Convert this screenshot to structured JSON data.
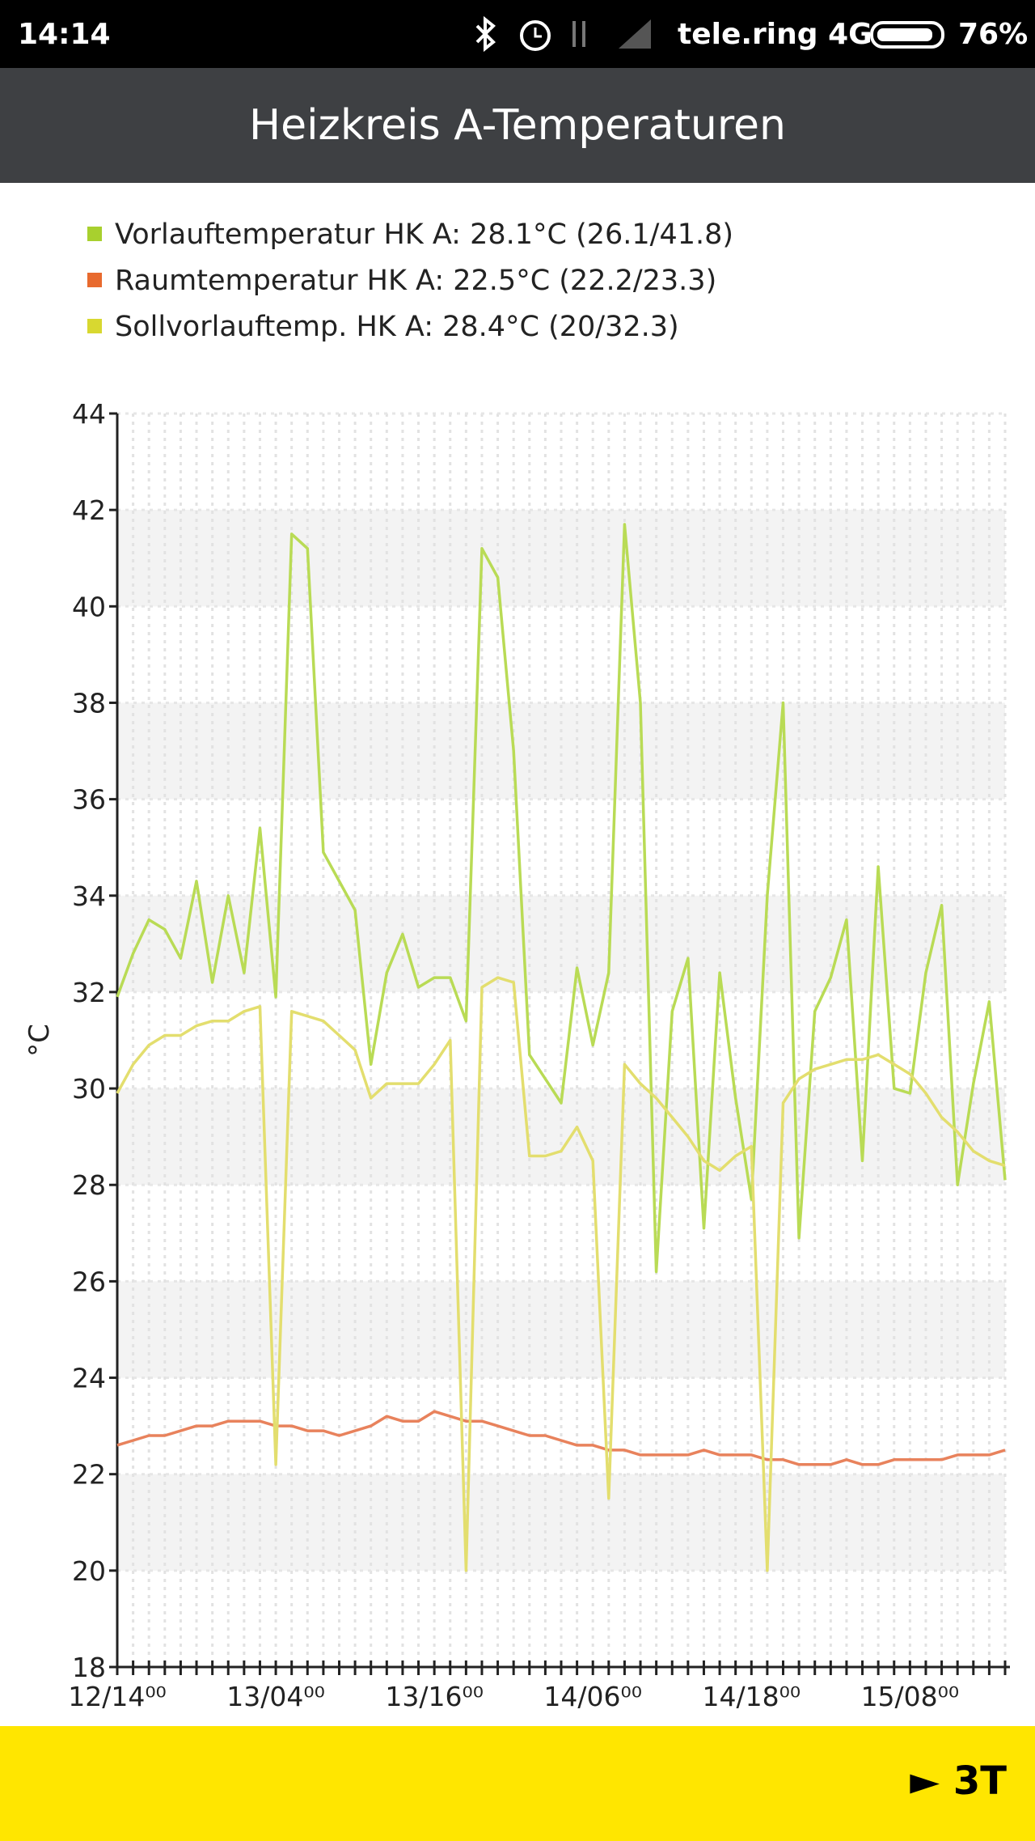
{
  "status_bar": {
    "time": "14:14",
    "carrier": "tele.ring 4G",
    "battery": "76%"
  },
  "header": {
    "title": "Heizkreis A-Temperaturen"
  },
  "chart_data": {
    "type": "line",
    "ylabel": "°C",
    "categories": [
      "12/14⁰⁰",
      null,
      null,
      null,
      null,
      null,
      null,
      null,
      null,
      null,
      "13/04⁰⁰",
      null,
      null,
      null,
      null,
      null,
      null,
      null,
      null,
      null,
      "13/16⁰⁰",
      null,
      null,
      null,
      null,
      null,
      null,
      null,
      null,
      null,
      "14/06⁰⁰",
      null,
      null,
      null,
      null,
      null,
      null,
      null,
      null,
      null,
      "14/18⁰⁰",
      null,
      null,
      null,
      null,
      null,
      null,
      null,
      null,
      null,
      "15/08⁰⁰",
      null,
      null,
      null,
      null,
      null,
      null
    ],
    "series": [
      {
        "name": "Vorlauftemperatur HK A: 28.1°C (26.1/41.8)",
        "color": "#b9db55",
        "legend_color": "#a8d02e",
        "values": [
          31.9,
          32.8,
          33.5,
          33.3,
          32.7,
          34.3,
          32.2,
          34,
          32.4,
          35.4,
          31.9,
          41.5,
          41.2,
          34.9,
          34.3,
          33.7,
          30.5,
          32.4,
          33.2,
          32.1,
          32.3,
          32.3,
          31.4,
          41.2,
          40.6,
          37,
          30.7,
          30.2,
          29.7,
          32.5,
          30.9,
          32.4,
          41.7,
          38,
          26.2,
          31.6,
          32.7,
          27.1,
          32.4,
          29.8,
          27.7,
          34,
          38,
          26.9,
          31.6,
          32.3,
          33.5,
          28.5,
          34.6,
          30,
          29.9,
          32.4,
          33.8,
          28,
          30.1,
          31.8,
          28.1
        ]
      },
      {
        "name": "Raumtemperatur HK A: 22.5°C (22.2/23.3)",
        "color": "#e8825c",
        "legend_color": "#e86a2e",
        "values": [
          22.6,
          22.7,
          22.8,
          22.8,
          22.9,
          23.0,
          23.0,
          23.1,
          23.1,
          23.1,
          23.0,
          23.0,
          22.9,
          22.9,
          22.8,
          22.9,
          23.0,
          23.2,
          23.1,
          23.1,
          23.3,
          23.2,
          23.1,
          23.1,
          23.0,
          22.9,
          22.8,
          22.8,
          22.7,
          22.6,
          22.6,
          22.5,
          22.5,
          22.4,
          22.4,
          22.4,
          22.4,
          22.5,
          22.4,
          22.4,
          22.4,
          22.3,
          22.3,
          22.2,
          22.2,
          22.2,
          22.3,
          22.2,
          22.2,
          22.3,
          22.3,
          22.3,
          22.3,
          22.4,
          22.4,
          22.4,
          22.5
        ]
      },
      {
        "name": "Sollvorlauftemp. HK A: 28.4°C (20/32.3)",
        "color": "#e3de6e",
        "legend_color": "#d8d830",
        "values": [
          29.9,
          30.5,
          30.9,
          31.1,
          31.1,
          31.3,
          31.4,
          31.4,
          31.6,
          31.7,
          22.2,
          31.6,
          31.5,
          31.4,
          31.1,
          30.8,
          29.8,
          30.1,
          30.1,
          30.1,
          30.5,
          31,
          20,
          32.1,
          32.3,
          32.2,
          28.6,
          28.6,
          28.7,
          29.2,
          28.5,
          21.5,
          30.5,
          30.1,
          29.8,
          29.4,
          29,
          28.5,
          28.3,
          28.6,
          28.8,
          20,
          29.7,
          30.2,
          30.4,
          30.5,
          30.6,
          30.6,
          30.7,
          30.5,
          30.3,
          29.9,
          29.4,
          29.1,
          28.7,
          28.5,
          28.4
        ]
      }
    ],
    "ylim": [
      18,
      44
    ],
    "yticks": [
      18,
      20,
      22,
      24,
      26,
      28,
      30,
      32,
      34,
      36,
      38,
      40,
      42,
      44
    ],
    "grid": true
  },
  "footer": {
    "button": "► 3T"
  }
}
